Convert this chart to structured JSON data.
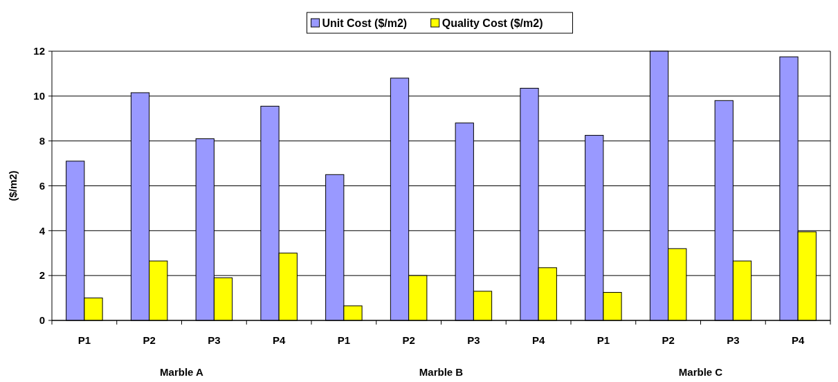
{
  "chart_data": {
    "type": "bar",
    "ylabel": "($/m2)",
    "categories": [
      "P1",
      "P2",
      "P3",
      "P4",
      "P1",
      "P2",
      "P3",
      "P4",
      "P1",
      "P2",
      "P3",
      "P4"
    ],
    "series": [
      {
        "name": "Unit Cost ($/m2)",
        "color": "#9999ff",
        "values": [
          7.1,
          10.15,
          8.1,
          9.55,
          6.5,
          10.8,
          8.8,
          10.35,
          8.25,
          12,
          9.8,
          11.75
        ]
      },
      {
        "name": "Quality Cost ($/m2)",
        "color": "#ffff00",
        "values": [
          1.0,
          2.65,
          1.9,
          3.0,
          0.65,
          2.0,
          1.3,
          2.35,
          1.25,
          3.2,
          2.65,
          3.95
        ]
      }
    ],
    "annotations": [
      "Marble A",
      "Marble B",
      "Marble C"
    ],
    "ylim": [
      0,
      12
    ],
    "yticks": [
      0,
      2,
      4,
      6,
      8,
      10,
      12
    ],
    "grid": "y",
    "legend": "top"
  }
}
